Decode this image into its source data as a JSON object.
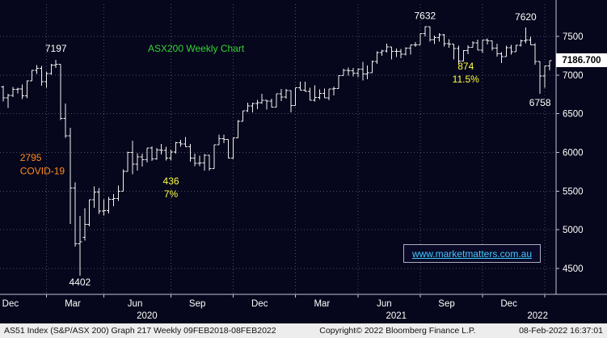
{
  "colors": {
    "background": "#06061c",
    "bar": "#f2f2f2",
    "grid": "#4e5268",
    "axis": "#c2c6d2",
    "tick_label": "#ffffff",
    "title": "#35d435",
    "orange": "#ff8c1a",
    "yellow": "#ffff3d",
    "link": "#3fc9ff",
    "price_box_bg": "#ffffff",
    "price_box_text": "#000000",
    "footer_bg": "#ededed",
    "footer_text": "#111111"
  },
  "chart_data": {
    "type": "ohlc-bar",
    "title": "ASX200 Weekly Chart",
    "period": "Weekly",
    "ylim": [
      4163,
      7921
    ],
    "yticks": [
      7500,
      7000,
      6500,
      6000,
      5500,
      5000,
      4500
    ],
    "last_price": "7186.700",
    "bars": [
      [
        6846,
        6862,
        6658,
        6707
      ],
      [
        6707,
        6760,
        6576,
        6740
      ],
      [
        6740,
        6850,
        6718,
        6817
      ],
      [
        6817,
        6836,
        6765,
        6821
      ],
      [
        6821,
        6879,
        6690,
        6733
      ],
      [
        6733,
        6930,
        6701,
        6929
      ],
      [
        6929,
        7068,
        6929,
        7064
      ],
      [
        7064,
        7132,
        7018,
        7090
      ],
      [
        7090,
        7120,
        6866,
        6917
      ],
      [
        6917,
        7049,
        6838,
        7023
      ],
      [
        7023,
        7145,
        7003,
        7130
      ],
      [
        7130,
        7197,
        7093,
        7139
      ],
      [
        7139,
        7139,
        6418,
        6441
      ],
      [
        6441,
        6631,
        6187,
        6216
      ],
      [
        6216,
        6322,
        5076,
        5539
      ],
      [
        5539,
        5615,
        4783,
        4816
      ],
      [
        4816,
        5181,
        4402,
        4842
      ],
      [
        4900,
        5279,
        4860,
        5067
      ],
      [
        5067,
        5387,
        5040,
        5387
      ],
      [
        5387,
        5563,
        5283,
        5487
      ],
      [
        5487,
        5541,
        5202,
        5242
      ],
      [
        5242,
        5393,
        5184,
        5245
      ],
      [
        5245,
        5422,
        5211,
        5391
      ],
      [
        5391,
        5461,
        5302,
        5404
      ],
      [
        5404,
        5573,
        5372,
        5497
      ],
      [
        5497,
        5780,
        5497,
        5756
      ],
      [
        5756,
        6008,
        5756,
        5998
      ],
      [
        5998,
        6152,
        5720,
        5848
      ],
      [
        5848,
        5990,
        5765,
        5943
      ],
      [
        5943,
        5986,
        5817,
        5904
      ],
      [
        5904,
        6058,
        5867,
        6057
      ],
      [
        6057,
        6080,
        5891,
        5919
      ],
      [
        5919,
        6059,
        5904,
        6034
      ],
      [
        6034,
        6110,
        5972,
        6024
      ],
      [
        6024,
        6074,
        5898,
        5928
      ],
      [
        5928,
        6037,
        5898,
        6005
      ],
      [
        6005,
        6137,
        5982,
        6126
      ],
      [
        6126,
        6161,
        6071,
        6111
      ],
      [
        6111,
        6199,
        6073,
        6073
      ],
      [
        6073,
        6112,
        5878,
        5925
      ],
      [
        5925,
        5983,
        5820,
        5859
      ],
      [
        5859,
        5956,
        5822,
        5864
      ],
      [
        5864,
        5981,
        5763,
        5964
      ],
      [
        5964,
        5970,
        5765,
        5792
      ],
      [
        5792,
        6102,
        5792,
        6102
      ],
      [
        6102,
        6228,
        6102,
        6177
      ],
      [
        6177,
        6231,
        6123,
        6167
      ],
      [
        6167,
        6167,
        5928,
        5928
      ],
      [
        5928,
        6190,
        5918,
        6190
      ],
      [
        6190,
        6420,
        6190,
        6405
      ],
      [
        6405,
        6539,
        6405,
        6539
      ],
      [
        6539,
        6644,
        6522,
        6601
      ],
      [
        6601,
        6645,
        6517,
        6634
      ],
      [
        6634,
        6683,
        6560,
        6643
      ],
      [
        6643,
        6757,
        6629,
        6675
      ],
      [
        6675,
        6680,
        6553,
        6664
      ],
      [
        6664,
        6695,
        6587,
        6587
      ],
      [
        6587,
        6757,
        6587,
        6757
      ],
      [
        6757,
        6821,
        6663,
        6715
      ],
      [
        6715,
        6824,
        6697,
        6800
      ],
      [
        6800,
        6800,
        6517,
        6607
      ],
      [
        6607,
        6840,
        6607,
        6840
      ],
      [
        6840,
        6917,
        6804,
        6806
      ],
      [
        6806,
        6917,
        6793,
        6793
      ],
      [
        6793,
        6839,
        6673,
        6673
      ],
      [
        6673,
        6868,
        6658,
        6710
      ],
      [
        6710,
        6817,
        6684,
        6766
      ],
      [
        6766,
        6827,
        6708,
        6708
      ],
      [
        6708,
        6824,
        6673,
        6824
      ],
      [
        6824,
        6851,
        6739,
        6828
      ],
      [
        6828,
        7000,
        6828,
        6995
      ],
      [
        6995,
        7082,
        6995,
        7063
      ],
      [
        7063,
        7097,
        6997,
        7060
      ],
      [
        7060,
        7092,
        6986,
        7025
      ],
      [
        7025,
        7089,
        6973,
        7080
      ],
      [
        7080,
        7172,
        6931,
        7014
      ],
      [
        7014,
        7123,
        6948,
        7030
      ],
      [
        7030,
        7186,
        7030,
        7179
      ],
      [
        7179,
        7308,
        7145,
        7295
      ],
      [
        7295,
        7332,
        7249,
        7312
      ],
      [
        7312,
        7406,
        7293,
        7368
      ],
      [
        7368,
        7368,
        7203,
        7308
      ],
      [
        7308,
        7345,
        7234,
        7308
      ],
      [
        7308,
        7339,
        7222,
        7273
      ],
      [
        7273,
        7360,
        7255,
        7348
      ],
      [
        7348,
        7394,
        7265,
        7394
      ],
      [
        7394,
        7431,
        7367,
        7393
      ],
      [
        7393,
        7538,
        7393,
        7538
      ],
      [
        7538,
        7632,
        7502,
        7628
      ],
      [
        7628,
        7628,
        7432,
        7461
      ],
      [
        7461,
        7512,
        7402,
        7488
      ],
      [
        7488,
        7543,
        7435,
        7522
      ],
      [
        7522,
        7534,
        7369,
        7407
      ],
      [
        7407,
        7465,
        7355,
        7404
      ],
      [
        7404,
        7404,
        7203,
        7343
      ],
      [
        7343,
        7384,
        7149,
        7185
      ],
      [
        7185,
        7323,
        7185,
        7320
      ],
      [
        7320,
        7385,
        7273,
        7362
      ],
      [
        7362,
        7441,
        7360,
        7416
      ],
      [
        7416,
        7461,
        7323,
        7324
      ],
      [
        7324,
        7457,
        7287,
        7457
      ],
      [
        7457,
        7474,
        7398,
        7443
      ],
      [
        7443,
        7444,
        7319,
        7353
      ],
      [
        7353,
        7407,
        7239,
        7279
      ],
      [
        7279,
        7299,
        7158,
        7241
      ],
      [
        7241,
        7384,
        7241,
        7354
      ],
      [
        7354,
        7394,
        7265,
        7304
      ],
      [
        7304,
        7393,
        7304,
        7388
      ],
      [
        7388,
        7459,
        7370,
        7445
      ],
      [
        7445,
        7620,
        7412,
        7454
      ],
      [
        7454,
        7497,
        7394,
        7394
      ],
      [
        7394,
        7411,
        7137,
        7176
      ],
      [
        7176,
        7176,
        6758,
        6988
      ],
      [
        6988,
        7120,
        6838,
        7120
      ],
      [
        7120,
        7187,
        7062,
        7187
      ]
    ],
    "xaxis": {
      "grid_weeks": [
        9,
        21,
        35,
        48,
        61,
        74,
        87,
        100,
        113
      ],
      "months": [
        {
          "label": "Dec",
          "week": 1.5
        },
        {
          "label": "Mar",
          "week": 14.5
        },
        {
          "label": "Jun",
          "week": 27.5
        },
        {
          "label": "Sep",
          "week": 40.5
        },
        {
          "label": "Dec",
          "week": 53.5
        },
        {
          "label": "Mar",
          "week": 66.5
        },
        {
          "label": "Jun",
          "week": 79.5
        },
        {
          "label": "Sep",
          "week": 92.5
        },
        {
          "label": "Dec",
          "week": 105.5
        }
      ],
      "years": [
        {
          "label": "2020",
          "week": 30
        },
        {
          "label": "2021",
          "week": 82
        },
        {
          "label": "2022",
          "week": 111.5
        }
      ]
    },
    "annotations": [
      {
        "text": "7197",
        "week": 11,
        "price": 7197,
        "dy": -14,
        "color": "#ffffff",
        "anchor": "middle"
      },
      {
        "text": "7632",
        "week": 88,
        "price": 7632,
        "dy": -13,
        "color": "#ffffff",
        "anchor": "middle"
      },
      {
        "text": "7620",
        "week": 109,
        "price": 7620,
        "dy": -13,
        "color": "#ffffff",
        "anchor": "middle"
      },
      {
        "text": "6758",
        "week": 112,
        "price": 6758,
        "dy": 11,
        "color": "#ffffff",
        "anchor": "middle"
      },
      {
        "text": "4402",
        "week": 16,
        "price": 4402,
        "dy": 8,
        "color": "#ffffff",
        "anchor": "middle"
      },
      {
        "text": "2795",
        "week": 3.5,
        "price": 5930,
        "dy": 0,
        "color": "#ff8c1a",
        "anchor": "start"
      },
      {
        "text": "COVID-19",
        "week": 3.5,
        "price": 5760,
        "dy": 0,
        "color": "#ff8c1a",
        "anchor": "start"
      },
      {
        "text": "436",
        "week": 35,
        "price": 5630,
        "dy": 0,
        "color": "#ffff3d",
        "anchor": "middle"
      },
      {
        "text": "7%",
        "week": 35,
        "price": 5460,
        "dy": 0,
        "color": "#ffff3d",
        "anchor": "middle"
      },
      {
        "text": "874",
        "week": 96.5,
        "price": 7115,
        "dy": 0,
        "color": "#ffff3d",
        "anchor": "middle"
      },
      {
        "text": "11.5%",
        "week": 96.5,
        "price": 6950,
        "dy": 0,
        "color": "#ffff3d",
        "anchor": "middle"
      }
    ]
  },
  "branding": {
    "website": "www.marketmatters.com.au"
  },
  "footer": {
    "left": "AS51 Index (S&P/ASX 200) Graph 217  Weekly 09FEB2018-08FEB2022",
    "center": "Copyright© 2022 Bloomberg Finance L.P.",
    "right": "08-Feb-2022 16:37:01"
  }
}
